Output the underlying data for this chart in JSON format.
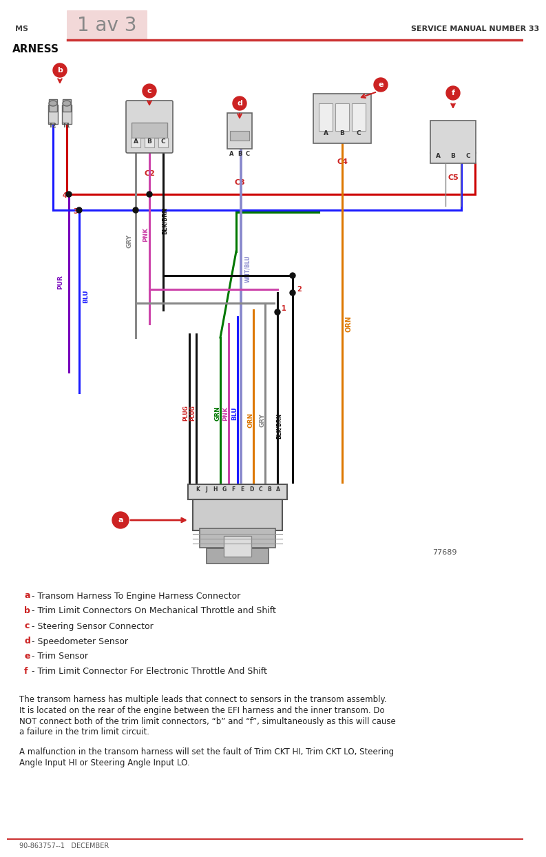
{
  "title_left": "MS",
  "title_center": "1 av 3",
  "title_right": "SERVICE MANUAL NUMBER 33",
  "subtitle": "ARNESS",
  "footer_left": "90-863757--1   DECEMBER",
  "fig_number": "77689",
  "page_bg": "#ffffff",
  "header_line_color": "#cc3333",
  "legend": [
    {
      "letter": "a",
      "text": " - Transom Harness To Engine Harness Connector"
    },
    {
      "letter": "b",
      "text": " - Trim Limit Connectors On Mechanical Throttle and Shift"
    },
    {
      "letter": "c",
      "text": " - Steering Sensor Connector"
    },
    {
      "letter": "d",
      "text": " - Speedometer Sensor"
    },
    {
      "letter": "e",
      "text": " - Trim Sensor"
    },
    {
      "letter": "f",
      "text": " - Trim Limit Connector For Electronic Throttle And Shift"
    }
  ],
  "body_text1_line1": "The transom harness has multiple leads that connect to sensors in the transom assembly.",
  "body_text1_line2": "It is located on the rear of the engine between the EFI harness and the inner transom. Do",
  "body_text1_line3": "NOT connect both of the trim limit connectors, “b” and “f”, simultaneously as this will cause",
  "body_text1_line4": "a failure in the trim limit circuit.",
  "body_text2_line1": "A malfunction in the transom harness will set the fault of Trim CKT HI, Trim CKT LO, Steering",
  "body_text2_line2": "Angle Input HI or Steering Angle Input LO.",
  "wire_colors": {
    "RED": "#cc0000",
    "BLUE": "#1a1aff",
    "PURPLE": "#7700bb",
    "GREEN": "#007700",
    "BLACK": "#111111",
    "PINK": "#cc44aa",
    "GRAY": "#888888",
    "ORANGE": "#dd7700",
    "WHT_BLU": "#8888cc",
    "BLK_BRN": "#332200"
  }
}
